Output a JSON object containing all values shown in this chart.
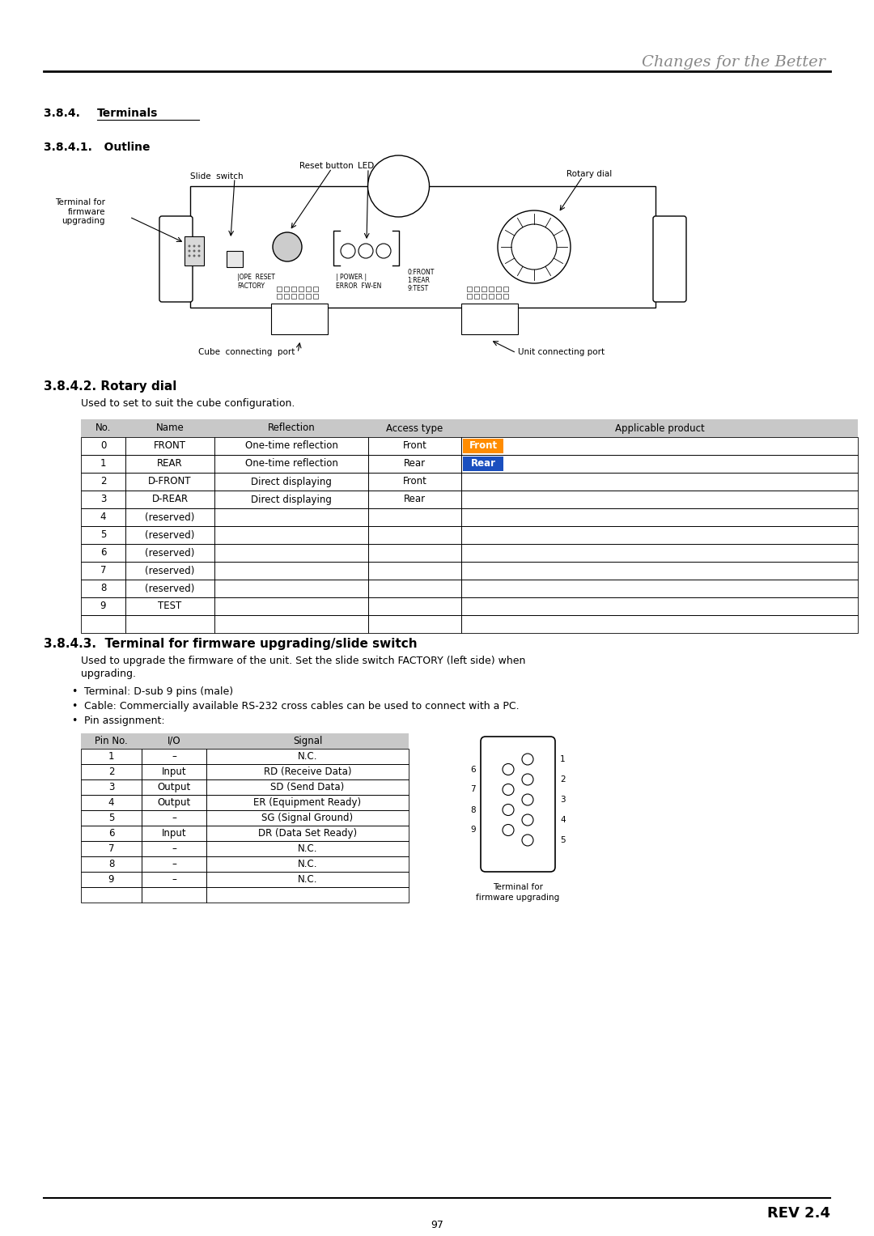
{
  "bg_color": "#ffffff",
  "title_italic": "Changes for the Better",
  "section_384": "3.8.4.   Terminals",
  "section_3841": "3.8.4.1.   Outline",
  "section_3842_num": "3.8.4.2.",
  "section_3842_title": " Rotary dial",
  "section_3842_desc": "Used to set to suit the cube configuration.",
  "section_3843_num": "3.8.4.3.",
  "section_3843_title": "  Terminal for firmware upgrading/slide switch",
  "section_3843_para1": "Used to upgrade the firmware of the unit. Set the slide switch FACTORY (left side) when",
  "section_3843_para2": "upgrading.",
  "bullet1": "Terminal: D-sub 9 pins (male)",
  "bullet2": "Cable: Commercially available RS-232 cross cables can be used to connect with a PC.",
  "bullet3": "Pin assignment:",
  "rotary_table_header": [
    "No.",
    "Name",
    "Reflection",
    "Access type",
    "Applicable product"
  ],
  "rotary_table_rows": [
    [
      "0",
      "FRONT",
      "One-time reflection",
      "Front",
      "Front",
      "orange"
    ],
    [
      "1",
      "REAR",
      "One-time reflection",
      "Rear",
      "Rear",
      "blue"
    ],
    [
      "2",
      "D-FRONT",
      "Direct displaying",
      "Front",
      "",
      ""
    ],
    [
      "3",
      "D-REAR",
      "Direct displaying",
      "Rear",
      "",
      ""
    ],
    [
      "4",
      "(reserved)",
      "",
      "",
      "",
      ""
    ],
    [
      "5",
      "(reserved)",
      "",
      "",
      "",
      ""
    ],
    [
      "6",
      "(reserved)",
      "",
      "",
      "",
      ""
    ],
    [
      "7",
      "(reserved)",
      "",
      "",
      "",
      ""
    ],
    [
      "8",
      "(reserved)",
      "",
      "",
      "",
      ""
    ],
    [
      "9",
      "TEST",
      "",
      "",
      "",
      ""
    ]
  ],
  "pin_table_header": [
    "Pin No.",
    "I/O",
    "Signal"
  ],
  "pin_table_rows": [
    [
      "1",
      "–",
      "N.C."
    ],
    [
      "2",
      "Input",
      "RD (Receive Data)"
    ],
    [
      "3",
      "Output",
      "SD (Send Data)"
    ],
    [
      "4",
      "Output",
      "ER (Equipment Ready)"
    ],
    [
      "5",
      "–",
      "SG (Signal Ground)"
    ],
    [
      "6",
      "Input",
      "DR (Data Set Ready)"
    ],
    [
      "7",
      "–",
      "N.C."
    ],
    [
      "8",
      "–",
      "N.C."
    ],
    [
      "9",
      "–",
      "N.C."
    ]
  ],
  "rev_text": "REV 2.4",
  "page_num": "97"
}
